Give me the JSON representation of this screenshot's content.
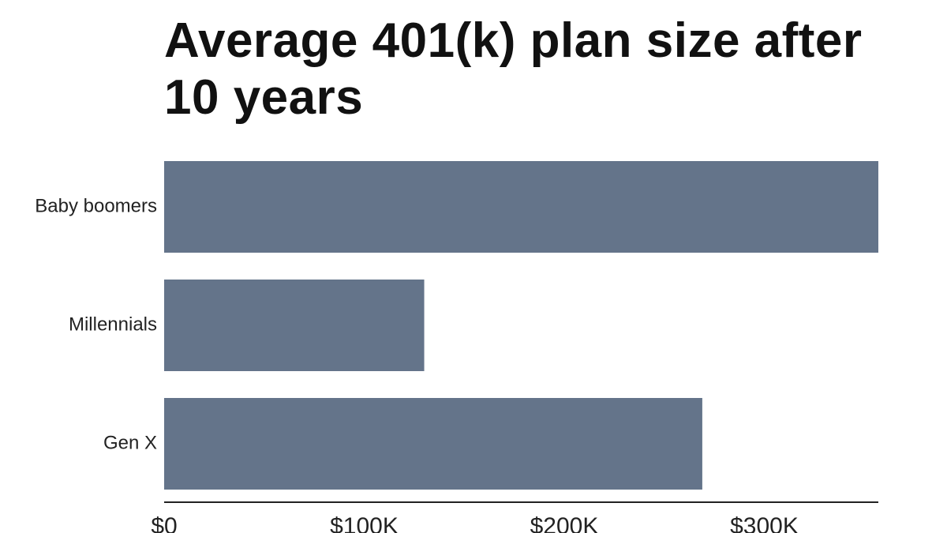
{
  "chart_data": {
    "type": "bar",
    "orientation": "horizontal",
    "title": "Average 401(k) plan size after 10 years",
    "xlabel": "",
    "ylabel": "",
    "categories": [
      "Baby boomers",
      "Millennials",
      "Gen X"
    ],
    "values": [
      357000,
      130000,
      269000
    ],
    "xlim": [
      0,
      357000
    ],
    "x_ticks": [
      0,
      100000,
      200000,
      300000
    ],
    "x_tick_labels": [
      "$0",
      "$100K",
      "$200K",
      "$300K"
    ],
    "grid": false,
    "legend": "none",
    "bar_color": "#64748a"
  }
}
